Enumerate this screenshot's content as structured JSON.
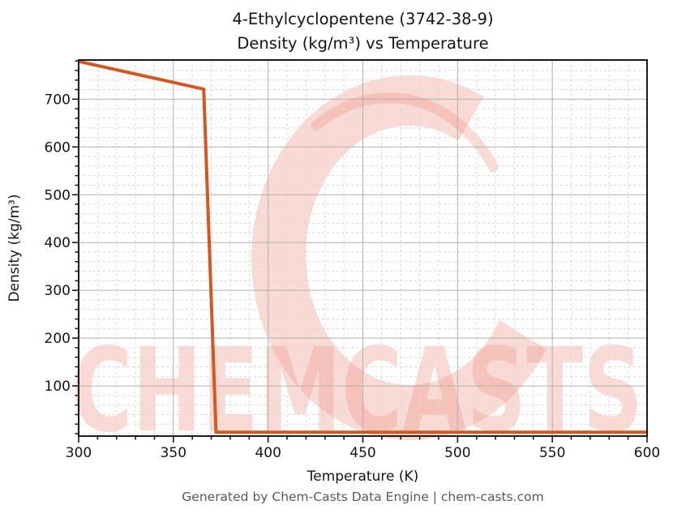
{
  "title": {
    "line1": "4-Ethylcyclopentene (3742-38-9)",
    "line2": "Density (kg/m³) vs Temperature"
  },
  "footer": {
    "text": "Generated by Chem-Casts Data Engine | chem-casts.com"
  },
  "watermark": {
    "text": "CHEMCASTS",
    "logo": "chemcasts-c-swirl-logo",
    "color": "#ef8d7c",
    "opacity": 0.32
  },
  "chart_data": {
    "type": "line",
    "title": "4-Ethylcyclopentene (3742-38-9) Density (kg/m³) vs Temperature",
    "xlabel": "Temperature (K)",
    "ylabel": "Density (kg/m³)",
    "xlim": [
      300,
      600
    ],
    "ylim": [
      -5,
      782
    ],
    "x_ticks": [
      300,
      350,
      400,
      450,
      500,
      550,
      600
    ],
    "y_ticks": [
      100,
      200,
      300,
      400,
      500,
      600,
      700
    ],
    "x_minor_step": 10,
    "y_minor_step": 20,
    "grid": {
      "major": true,
      "minor": true,
      "major_color": "#b0b0b0",
      "minor_color": "#d9d9d9"
    },
    "legend": null,
    "series": [
      {
        "name": "density",
        "color": "#d4571f",
        "line_width": 4,
        "points": [
          [
            300,
            779
          ],
          [
            366,
            721
          ],
          [
            372.5,
            3
          ],
          [
            600,
            3
          ]
        ]
      }
    ]
  }
}
